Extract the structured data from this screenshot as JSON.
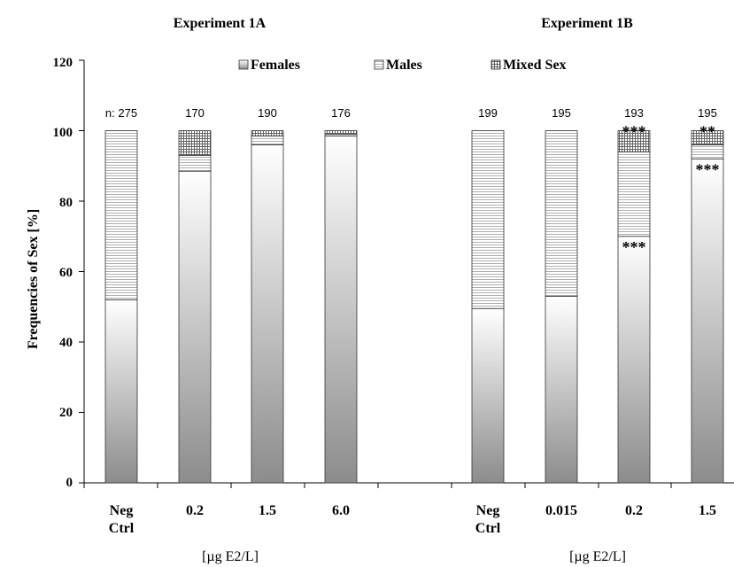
{
  "chart_data": {
    "type": "bar",
    "stacked": true,
    "ylabel": "Frequencies of Sex [%]",
    "ylim": [
      0,
      120
    ],
    "yticks": [
      "0",
      "20",
      "40",
      "60",
      "80",
      "100",
      "120"
    ],
    "grid": false,
    "legend_position": "top-center",
    "legend": [
      {
        "name": "Females",
        "pattern": "gradient-gray"
      },
      {
        "name": "Males",
        "pattern": "horizontal-lines"
      },
      {
        "name": "Mixed Sex",
        "pattern": "grid"
      }
    ],
    "panels": [
      {
        "title": "Experiment 1A",
        "unit_label": "[µg E2/L]",
        "categories": [
          {
            "line1": "Neg",
            "line2": "Ctrl"
          },
          {
            "line1": "0.2",
            "line2": ""
          },
          {
            "line1": "1.5",
            "line2": ""
          },
          {
            "line1": "6.0",
            "line2": ""
          }
        ],
        "n_labels": [
          "n: 275",
          "170",
          "190",
          "176"
        ],
        "series": [
          {
            "name": "Females",
            "values": [
              52,
              88.5,
              96,
              98.5
            ]
          },
          {
            "name": "Males",
            "values": [
              48,
              4.5,
              2.5,
              0.5
            ]
          },
          {
            "name": "Mixed Sex",
            "values": [
              0,
              7,
              1.5,
              1
            ]
          }
        ],
        "annotations": [
          {
            "category": 0,
            "on": "",
            "text": ""
          },
          {
            "category": 1,
            "on": "",
            "text": ""
          },
          {
            "category": 2,
            "on": "",
            "text": ""
          },
          {
            "category": 3,
            "on": "",
            "text": ""
          }
        ]
      },
      {
        "title": "Experiment 1B",
        "unit_label": "[µg E2/L]",
        "categories": [
          {
            "line1": "Neg",
            "line2": "Ctrl"
          },
          {
            "line1": "0.015",
            "line2": ""
          },
          {
            "line1": "0.2",
            "line2": ""
          },
          {
            "line1": "1.5",
            "line2": ""
          }
        ],
        "n_labels": [
          "199",
          "195",
          "193",
          "195"
        ],
        "series": [
          {
            "name": "Females",
            "values": [
              49.5,
              53,
              70,
              92
            ]
          },
          {
            "name": "Males",
            "values": [
              50.5,
              47,
              24,
              4
            ]
          },
          {
            "name": "Mixed Sex",
            "values": [
              0,
              0,
              6,
              4
            ]
          }
        ],
        "annotations": [
          {
            "category": 2,
            "on": "Mixed Sex",
            "text": "***"
          },
          {
            "category": 2,
            "on": "Females",
            "text": "***"
          },
          {
            "category": 3,
            "on": "Mixed Sex",
            "text": "**"
          },
          {
            "category": 3,
            "on": "Females",
            "text": "***"
          }
        ]
      }
    ]
  }
}
